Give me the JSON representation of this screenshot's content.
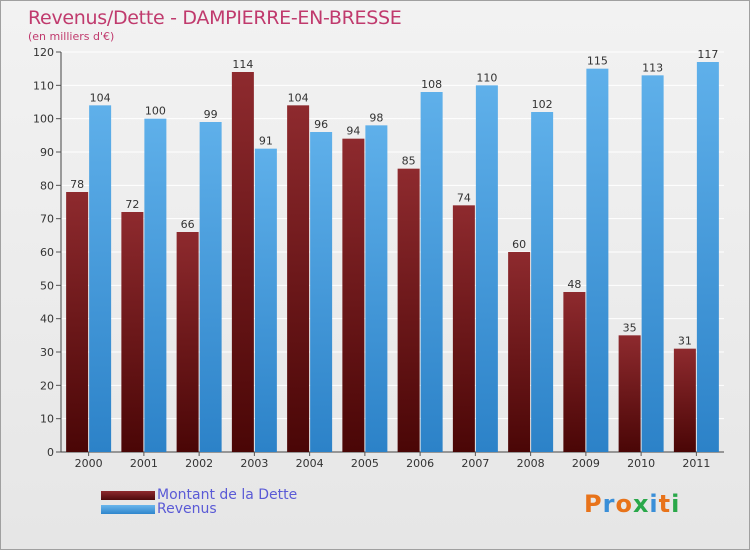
{
  "title": "Revenus/Dette - DAMPIERRE-EN-BRESSE",
  "subtitle": "(en milliers d'€)",
  "chart_data": {
    "type": "bar",
    "categories": [
      "2000",
      "2001",
      "2002",
      "2003",
      "2004",
      "2005",
      "2006",
      "2007",
      "2008",
      "2009",
      "2010",
      "2011"
    ],
    "series": [
      {
        "name": "Montant de la Dette",
        "color": "#7a1a1e",
        "values": [
          78,
          72,
          66,
          114,
          104,
          94,
          85,
          74,
          60,
          48,
          35,
          31
        ]
      },
      {
        "name": "Revenus",
        "color": "#4fa3e0",
        "values": [
          104,
          100,
          99,
          91,
          96,
          98,
          108,
          110,
          102,
          115,
          113,
          117
        ]
      }
    ],
    "ylim": [
      0,
      120
    ],
    "yticks": [
      0,
      10,
      20,
      30,
      40,
      50,
      60,
      70,
      80,
      90,
      100,
      110,
      120
    ],
    "grid": true,
    "xlabel": "",
    "ylabel": ""
  },
  "legend": {
    "items": [
      {
        "label": "Montant de la Dette",
        "color": "#7a1a1e"
      },
      {
        "label": "Revenus",
        "color": "#4fa3e0"
      }
    ]
  },
  "logo": {
    "text": "Proxiti",
    "letter_colors": [
      "#e8731a",
      "#3a8fd8",
      "#e8731a",
      "#2aa84a",
      "#3a8fd8",
      "#e8731a",
      "#2aa84a"
    ]
  }
}
